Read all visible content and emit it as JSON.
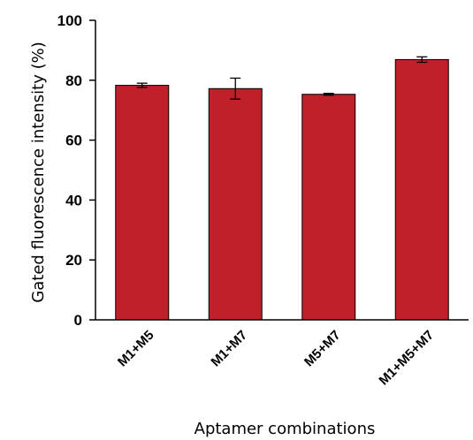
{
  "chart_data": {
    "type": "bar",
    "title": "",
    "xlabel": "Aptamer combinations",
    "ylabel": "Gated fluorescence intensity (%)",
    "categories": [
      "M1+M5",
      "M1+M7",
      "M5+M7",
      "M1+M5+M7"
    ],
    "values": [
      78.3,
      77.2,
      75.3,
      86.9
    ],
    "errors": [
      0.7,
      3.5,
      0.3,
      0.9
    ],
    "ylim": [
      0,
      100
    ],
    "yticks": [
      "0",
      "20",
      "40",
      "60",
      "80",
      "100"
    ],
    "bar_color": "#c0202a",
    "grid": false,
    "legend": "none"
  }
}
